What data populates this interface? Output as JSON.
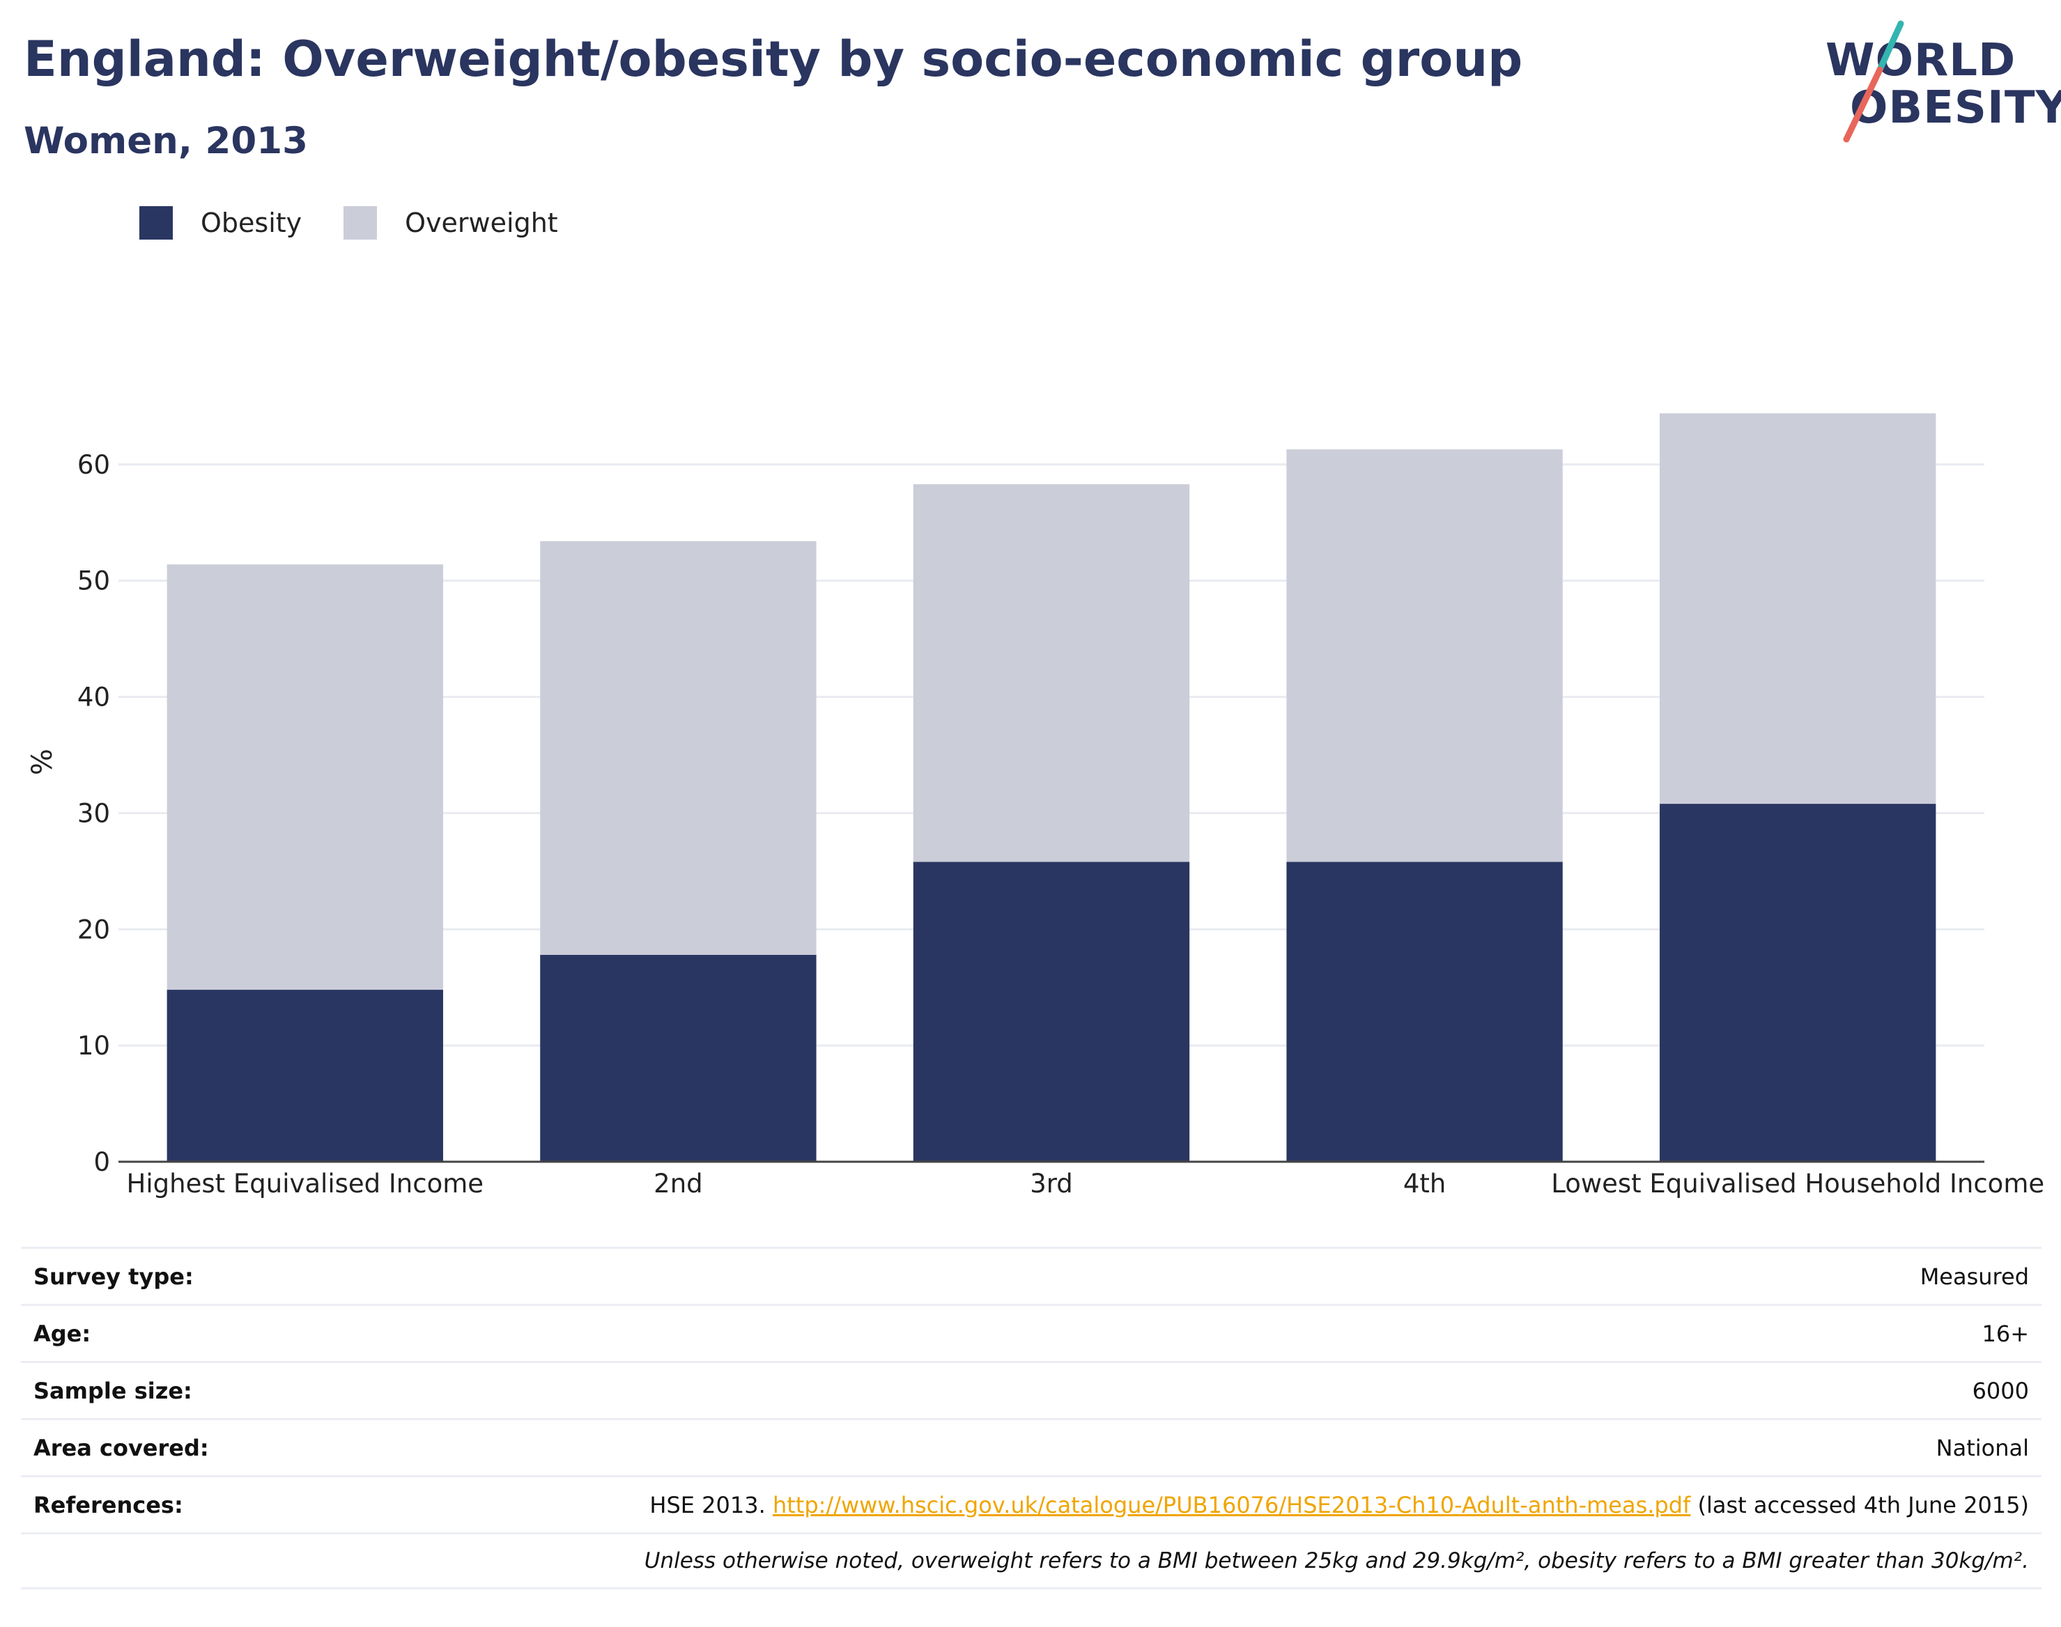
{
  "header": {
    "title": "England: Overweight/obesity by socio-economic group",
    "subtitle": "Women, 2013"
  },
  "logo": {
    "line1": "WORLD",
    "line2": "OBESITY",
    "colors": {
      "text": "#2a3560",
      "slash_teal": "#34b5b0",
      "slash_red": "#e8665a"
    }
  },
  "legend": [
    {
      "name": "Obesity",
      "color": "#2a3662"
    },
    {
      "name": "Overweight",
      "color": "#cbcdd9"
    }
  ],
  "chart_data": {
    "type": "bar",
    "stacked": true,
    "categories": [
      "Highest Equivalised Income",
      "2nd",
      "3rd",
      "4th",
      "Lowest Equivalised Household Income"
    ],
    "series": [
      {
        "name": "Obesity",
        "values": [
          14.8,
          17.8,
          25.8,
          25.8,
          30.8
        ],
        "color": "#2a3662"
      },
      {
        "name": "Overweight",
        "values": [
          36.6,
          35.6,
          32.5,
          35.5,
          33.6
        ],
        "color": "#cbcdd9"
      }
    ],
    "ylabel": "%",
    "ylim": [
      0,
      70
    ],
    "yticks": [
      0,
      10,
      20,
      30,
      40,
      50,
      60
    ],
    "grid": true,
    "legend_position": "top-left"
  },
  "info": {
    "survey_type": {
      "label": "Survey type:",
      "value": "Measured"
    },
    "age": {
      "label": "Age:",
      "value": "16+"
    },
    "sample_size": {
      "label": "Sample size:",
      "value": "6000"
    },
    "area_covered": {
      "label": "Area covered:",
      "value": "National"
    },
    "references": {
      "label": "References:",
      "prefix": "HSE 2013.",
      "link": "http://www.hscic.gov.uk/catalogue/PUB16076/HSE2013-Ch10-Adult-anth-meas.pdf",
      "suffix": "(last accessed 4th June 2015)"
    },
    "note": "Unless otherwise noted, overweight refers to a BMI between 25kg and 29.9kg/m², obesity refers to a BMI greater than 30kg/m²."
  }
}
